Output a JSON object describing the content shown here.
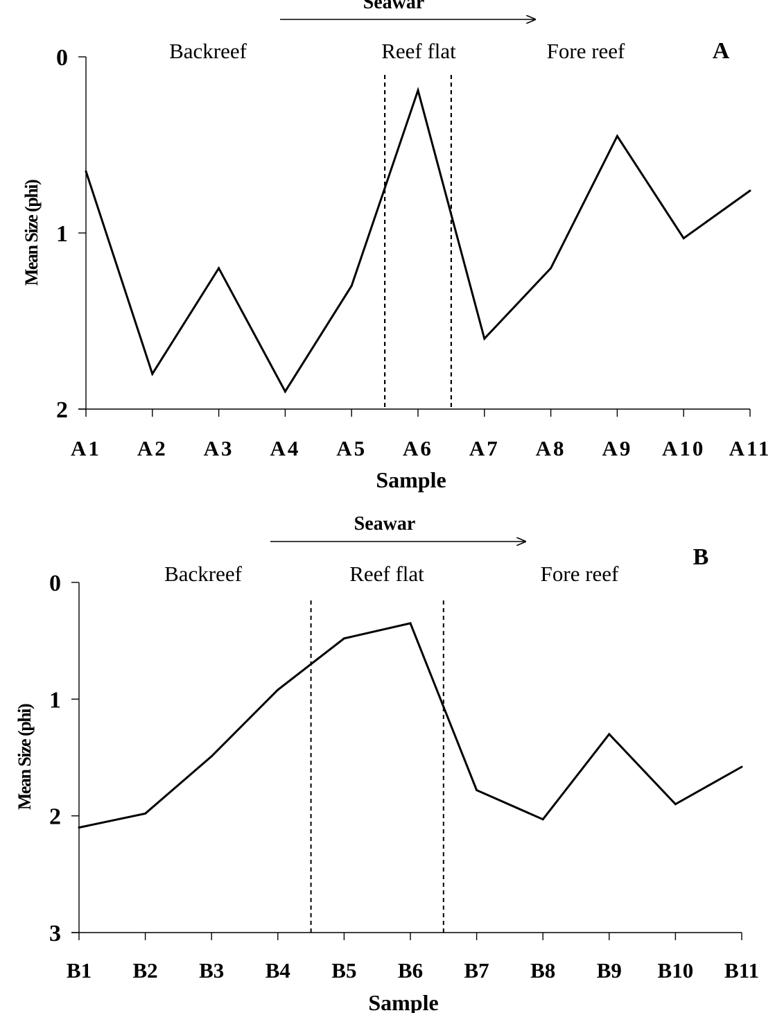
{
  "chart_data": [
    {
      "type": "line",
      "panel_label": "A",
      "direction_label": "Seawar",
      "zones": [
        "Backreef",
        "Reef flat",
        "Fore reef"
      ],
      "xlabel": "Sample",
      "ylabel": "Mean Size (phi)",
      "ylim": [
        0,
        2
      ],
      "y_inverted": true,
      "yticks": [
        0,
        1,
        2
      ],
      "ytick_labels": [
        "0",
        "1",
        "2"
      ],
      "categories": [
        "A1",
        "A2",
        "A3",
        "A4",
        "A5",
        "A6",
        "A7",
        "A8",
        "A9",
        "A10",
        "A11"
      ],
      "values": [
        0.65,
        1.8,
        1.2,
        1.9,
        1.3,
        0.19,
        1.6,
        1.2,
        0.45,
        1.03,
        0.76
      ],
      "zone_boundaries_between": [
        [
          5,
          6
        ],
        [
          6,
          7
        ]
      ],
      "grid": false,
      "colors": {
        "line": "#000000",
        "axis": "#000000"
      }
    },
    {
      "type": "line",
      "panel_label": "B",
      "direction_label": "Seawar",
      "zones": [
        "Backreef",
        "Reef flat",
        "Fore reef"
      ],
      "xlabel": "Sample",
      "ylabel": "Mean Size (phi)",
      "ylim": [
        0,
        3
      ],
      "y_inverted": true,
      "yticks": [
        0,
        1,
        2,
        3
      ],
      "ytick_labels": [
        "0",
        "1",
        "2",
        "3"
      ],
      "categories": [
        "B1",
        "B2",
        "B3",
        "B4",
        "B5",
        "B6",
        "B7",
        "B8",
        "B9",
        "B10",
        "B11"
      ],
      "values": [
        2.1,
        1.98,
        1.49,
        0.92,
        0.48,
        0.35,
        1.78,
        2.03,
        1.3,
        1.9,
        1.58
      ],
      "zone_boundaries_between": [
        [
          4,
          5
        ],
        [
          6,
          7
        ]
      ],
      "grid": false,
      "colors": {
        "line": "#000000",
        "axis": "#000000"
      }
    }
  ]
}
